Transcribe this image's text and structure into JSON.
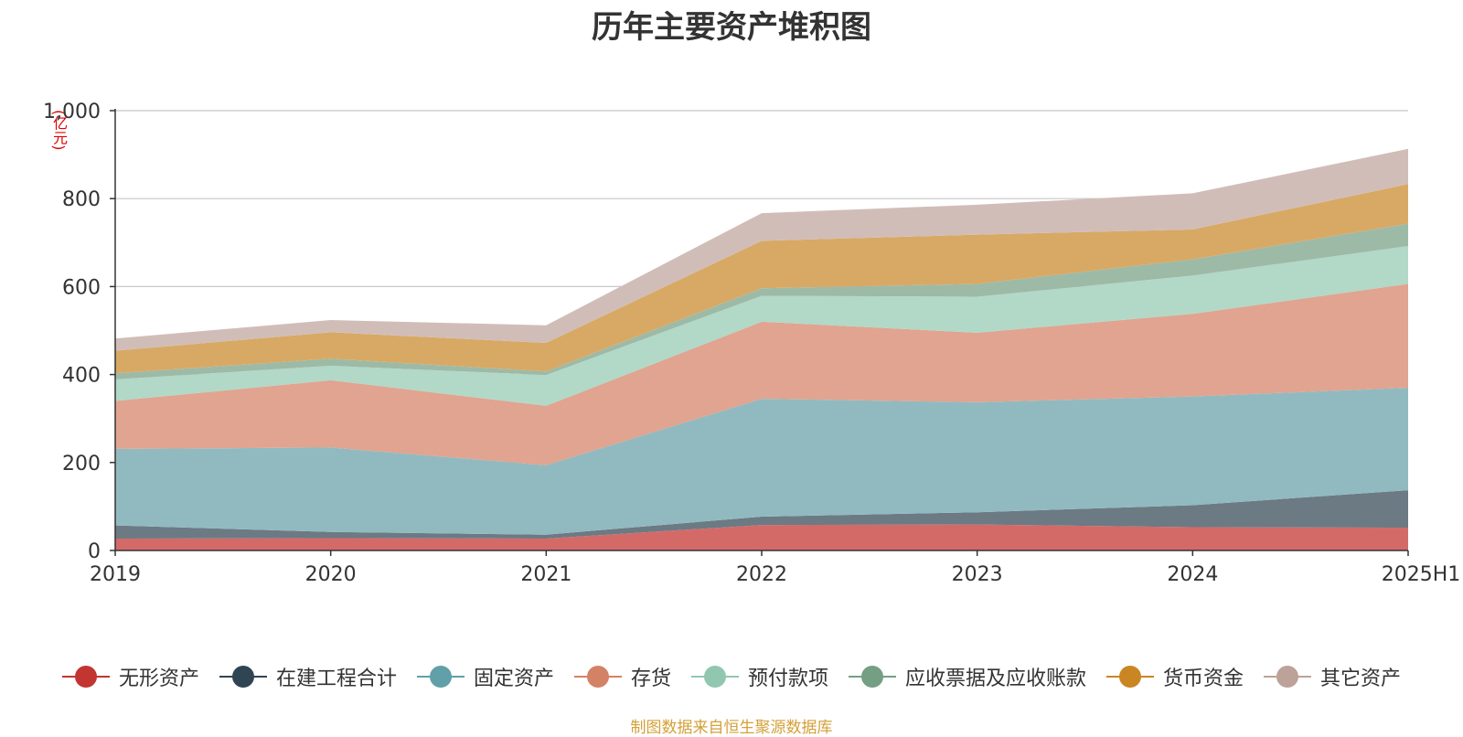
{
  "chart_data": {
    "type": "area",
    "stacked": true,
    "title": "历年主要资产堆积图",
    "unit_label": "(亿元)",
    "categories": [
      "2019",
      "2020",
      "2021",
      "2022",
      "2023",
      "2024",
      "2025H1"
    ],
    "ylim": [
      0,
      1000
    ],
    "yticks": [
      0,
      200,
      400,
      600,
      800,
      1000
    ],
    "ytick_labels": [
      "0",
      "200",
      "400",
      "600",
      "800",
      "1,000"
    ],
    "grid": true,
    "legend_position": "bottom",
    "series": [
      {
        "name": "无形资产",
        "color": "#c23531",
        "fill": "#d46a68",
        "values": [
          27,
          28,
          27,
          58,
          59,
          53,
          52
        ]
      },
      {
        "name": "在建工程合计",
        "color": "#2f4554",
        "fill": "#6c7a84",
        "values": [
          30,
          14,
          9,
          19,
          28,
          50,
          85
        ]
      },
      {
        "name": "固定资产",
        "color": "#61a0a8",
        "fill": "#91bac0",
        "values": [
          174,
          192,
          158,
          268,
          250,
          247,
          233
        ]
      },
      {
        "name": "存货",
        "color": "#d48265",
        "fill": "#e0a490",
        "values": [
          109,
          153,
          135,
          175,
          158,
          188,
          236
        ]
      },
      {
        "name": "预付款项",
        "color": "#91c7ae",
        "fill": "#b2d8c7",
        "values": [
          49,
          33,
          70,
          59,
          82,
          87,
          86
        ]
      },
      {
        "name": "应收票据及应收账款",
        "color": "#749f83",
        "fill": "#9dbaa7",
        "values": [
          14,
          16,
          8,
          17,
          29,
          37,
          51
        ]
      },
      {
        "name": "货币资金",
        "color": "#ca8622",
        "fill": "#d8a964",
        "values": [
          51,
          60,
          65,
          108,
          112,
          68,
          90
        ]
      },
      {
        "name": "其它资产",
        "color": "#bda29a",
        "fill": "#d1bdb8",
        "values": [
          28,
          28,
          40,
          63,
          68,
          82,
          80
        ]
      }
    ]
  },
  "source_text": "制图数据来自恒生聚源数据库"
}
